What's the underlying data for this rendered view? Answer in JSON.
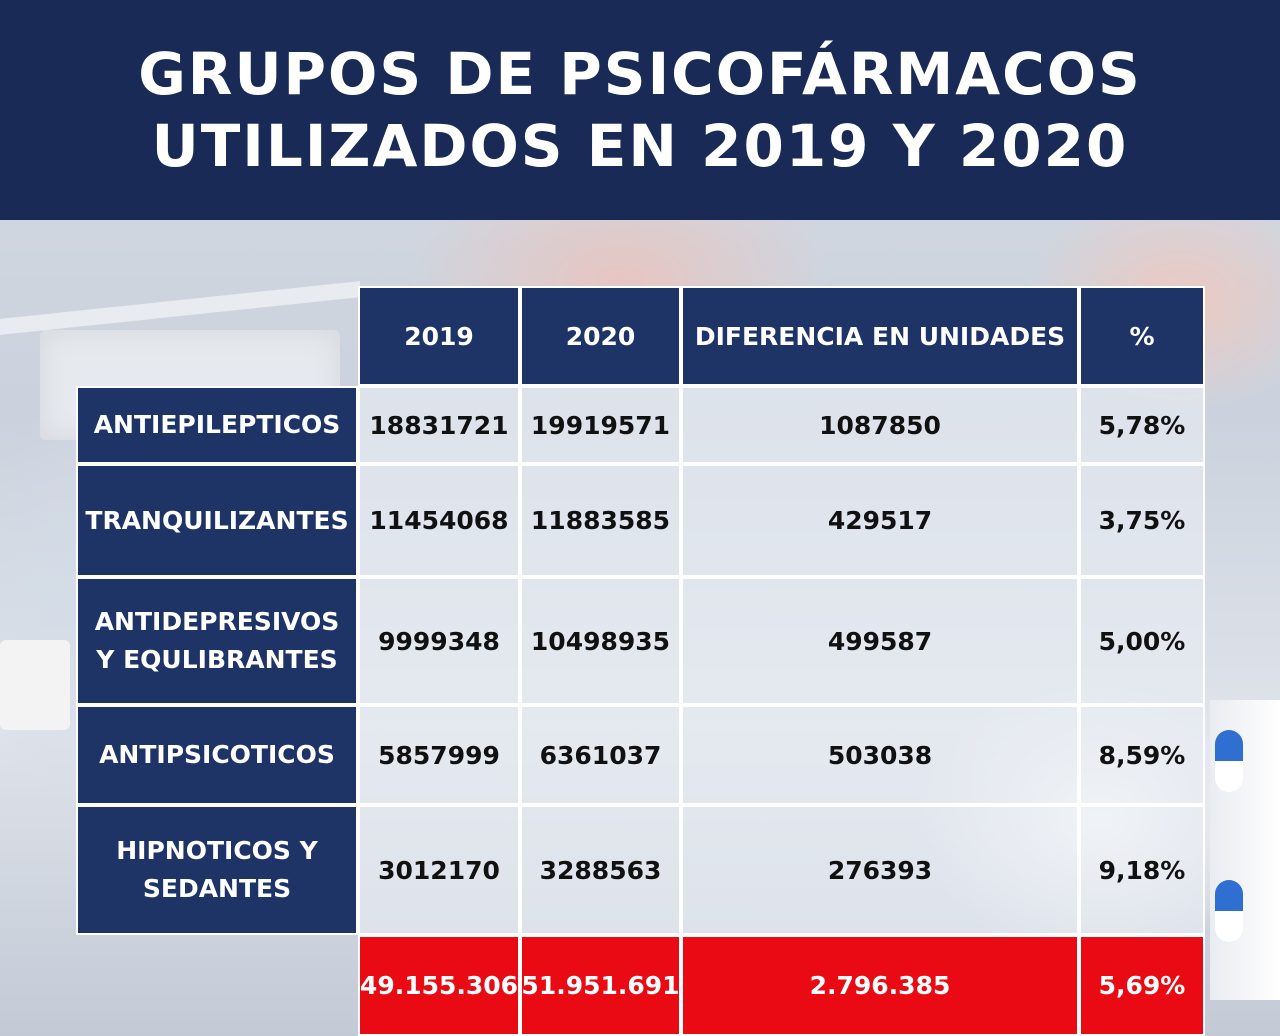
{
  "title": {
    "line1": "GRUPOS DE PSICOFÁRMACOS",
    "line2": "UTILIZADOS EN 2019 Y 2020"
  },
  "colors": {
    "header_navy": "#182a55",
    "label_navy": "#1f3466",
    "total_red": "#ea0a14"
  },
  "chart_data": {
    "type": "table",
    "title": "GRUPOS DE PSICOFÁRMACOS UTILIZADOS EN 2019 Y 2020",
    "columns": [
      "2019",
      "2020",
      "DIFERENCIA EN UNIDADES",
      "%"
    ],
    "rows": [
      {
        "label": "ANTIEPILEPTICOS",
        "values": [
          "18831721",
          "19919571",
          "1087850",
          "5,78%"
        ]
      },
      {
        "label": "TRANQUILIZANTES",
        "values": [
          "11454068",
          "11883585",
          "429517",
          "3,75%"
        ]
      },
      {
        "label": "ANTIDEPRESIVOS Y EQULIBRANTES",
        "label_lines": [
          "ANTIDEPRESIVOS",
          "Y EQULIBRANTES"
        ],
        "values": [
          "9999348",
          "10498935",
          "499587",
          "5,00%"
        ]
      },
      {
        "label": "ANTIPSICOTICOS",
        "values": [
          "5857999",
          "6361037",
          "503038",
          "8,59%"
        ]
      },
      {
        "label": "HIPNOTICOS Y SEDANTES",
        "label_lines": [
          "HIPNOTICOS Y",
          "SEDANTES"
        ],
        "values": [
          "3012170",
          "3288563",
          "276393",
          "9,18%"
        ]
      }
    ],
    "totals": [
      "49.155.306",
      "51.951.691",
      "2.796.385",
      "5,69%"
    ]
  }
}
